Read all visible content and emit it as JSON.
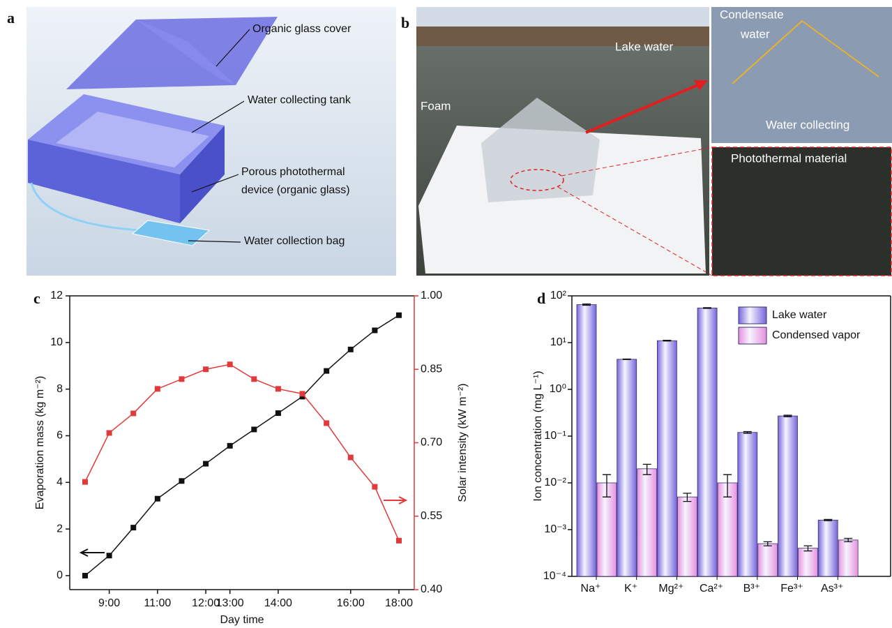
{
  "panels": {
    "a": {
      "label": "a",
      "annotations": [
        "Organic glass cover",
        "Water collecting tank",
        "Porous photothermal",
        "device (organic glass)",
        "Water collection bag"
      ]
    },
    "b": {
      "label": "b",
      "annotations": [
        "Lake water",
        "Foam",
        "Condensate",
        "water",
        "Water collecting",
        "Photothermal material"
      ]
    }
  },
  "chart_data": [
    {
      "panel_label": "c",
      "type": "line",
      "x_label": "Day time",
      "y_label": "Evaporation mass (kg m⁻²)",
      "y2_label": "Solar intensity (kW m⁻²)",
      "categories": [
        null,
        "9:00",
        null,
        "11:00",
        null,
        "12:00",
        "13:00",
        null,
        "14:00",
        null,
        null,
        "16:00",
        null,
        "18:00"
      ],
      "series": [
        {
          "color": "#111111",
          "values": [
            0,
            0.86,
            2.06,
            3.3,
            4.06,
            4.8,
            5.57,
            6.27,
            6.97,
            7.68,
            8.78,
            9.7,
            10.52,
            11.17
          ]
        },
        {
          "color": "#e03a3a",
          "axis": "y2",
          "values": [
            0.62,
            0.72,
            0.76,
            0.81,
            0.83,
            0.85,
            0.86,
            0.83,
            0.81,
            0.8,
            0.74,
            0.67,
            0.61,
            0.5
          ]
        }
      ],
      "ylim": [
        -0.6,
        12
      ],
      "yticks": [
        0,
        2,
        4,
        6,
        8,
        10,
        12
      ],
      "y2lim": [
        0.4,
        1.0
      ],
      "y2ticks": [
        {
          "value": 0.4,
          "label": "0.40"
        },
        0.55,
        {
          "value": 0.7,
          "label": "0.70"
        },
        0.85,
        {
          "value": 1.0,
          "label": "1.00"
        }
      ]
    },
    {
      "panel_label": "d",
      "type": "bar",
      "log_scale": true,
      "legend": "upper right",
      "y_label": "Ion concentration (mg L⁻¹)",
      "categories": [
        "Na⁺",
        "K⁺",
        "Mg²⁺",
        "Ca²⁺",
        "B³⁺",
        "Fe³⁺",
        "As³⁺"
      ],
      "series": [
        {
          "name": "Lake water",
          "color": "#7466dc",
          "values": [
            65,
            4.4,
            11,
            55,
            0.12,
            0.27,
            0.0016
          ],
          "errors": [
            2,
            0.05,
            0.2,
            1,
            0.005,
            0.01,
            5e-05
          ]
        },
        {
          "name": "Condensed vapor",
          "color": "#e690de",
          "values": [
            0.01,
            0.02,
            0.005,
            0.01,
            0.0005,
            0.0004,
            0.0006
          ],
          "errors": [
            0.005,
            0.005,
            0.001,
            0.005,
            5e-05,
            5e-05,
            5e-05
          ]
        }
      ],
      "ylim": [
        0.0001,
        100
      ],
      "yticks": [
        {
          "value": 0.0001,
          "label": "10⁻⁴"
        },
        {
          "value": 0.001,
          "label": "10⁻³"
        },
        {
          "value": 0.01,
          "label": "10⁻²"
        },
        {
          "value": 0.1,
          "label": "10⁻¹"
        },
        {
          "value": 1,
          "label": "10⁰"
        },
        {
          "value": 10,
          "label": "10¹"
        },
        {
          "value": 100,
          "label": "10²"
        }
      ]
    }
  ]
}
